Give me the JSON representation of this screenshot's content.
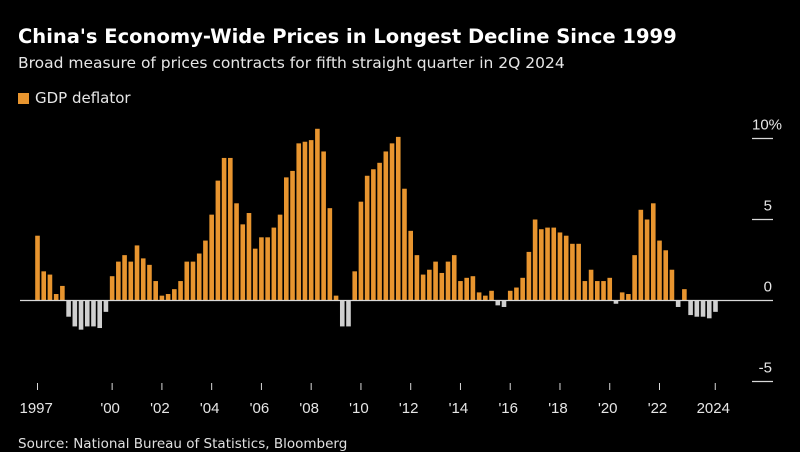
{
  "header": {
    "title": "China's Economy-Wide Prices in Longest Decline Since 1999",
    "subtitle": "Broad measure of prices contracts for fifth straight quarter in 2Q 2024"
  },
  "footer": {
    "source": "Source: National Bureau of Statistics, Bloomberg"
  },
  "colors": {
    "positive": "#e8952f",
    "negative": "#cfcfcf",
    "background": "#000000",
    "axis": "#d9d9d9"
  },
  "chart_data": {
    "type": "bar",
    "title": "China's Economy-Wide Prices in Longest Decline Since 1999",
    "subtitle": "Broad measure of prices contracts for fifth straight quarter in 2Q 2024",
    "legend": {
      "position": "top-left",
      "entries": [
        "GDP deflator"
      ]
    },
    "series": [
      {
        "name": "GDP deflator",
        "start": "1997Q1",
        "end": "2024Q2",
        "frequency": "quarterly",
        "values": [
          4.0,
          1.8,
          1.6,
          0.4,
          0.9,
          -1.0,
          -1.6,
          -1.8,
          -1.6,
          -1.6,
          -1.7,
          -0.7,
          1.5,
          2.4,
          2.8,
          2.4,
          3.4,
          2.6,
          2.2,
          1.2,
          0.3,
          0.4,
          0.7,
          1.2,
          2.4,
          2.4,
          2.9,
          3.7,
          5.3,
          7.4,
          8.8,
          8.8,
          6.0,
          4.7,
          5.4,
          3.2,
          3.9,
          3.9,
          4.5,
          5.3,
          7.6,
          8.0,
          9.7,
          9.8,
          9.9,
          10.6,
          9.2,
          5.7,
          0.3,
          -1.6,
          -1.6,
          1.8,
          6.1,
          7.7,
          8.1,
          8.5,
          9.2,
          9.7,
          10.1,
          6.9,
          4.3,
          2.8,
          1.6,
          1.9,
          2.4,
          1.7,
          2.4,
          2.8,
          1.2,
          1.4,
          1.5,
          0.5,
          0.3,
          0.6,
          -0.3,
          -0.4,
          0.6,
          0.8,
          1.4,
          3.0,
          5.0,
          4.4,
          4.5,
          4.5,
          4.2,
          4.0,
          3.5,
          3.5,
          1.2,
          1.9,
          1.2,
          1.2,
          1.4,
          -0.2,
          0.5,
          0.4,
          2.8,
          5.6,
          5.0,
          6.0,
          3.7,
          3.1,
          1.9,
          -0.4,
          0.7,
          -0.9,
          -1.0,
          -1.0,
          -1.1,
          -0.7
        ]
      }
    ],
    "xticks": [
      {
        "year": 1997,
        "label": "1997"
      },
      {
        "year": 2000,
        "label": "'00"
      },
      {
        "year": 2002,
        "label": "'02"
      },
      {
        "year": 2004,
        "label": "'04"
      },
      {
        "year": 2006,
        "label": "'06"
      },
      {
        "year": 2008,
        "label": "'08"
      },
      {
        "year": 2010,
        "label": "'10"
      },
      {
        "year": 2012,
        "label": "'12"
      },
      {
        "year": 2014,
        "label": "'14"
      },
      {
        "year": 2016,
        "label": "'16"
      },
      {
        "year": 2018,
        "label": "'18"
      },
      {
        "year": 2020,
        "label": "'20"
      },
      {
        "year": 2022,
        "label": "'22"
      },
      {
        "year": 2024,
        "label": "2024"
      }
    ],
    "yticks": [
      {
        "value": 10,
        "label": "10%"
      },
      {
        "value": 5,
        "label": "5"
      },
      {
        "value": 0,
        "label": "0"
      },
      {
        "value": -5,
        "label": "-5"
      }
    ],
    "ylim": [
      -5,
      10
    ],
    "ylabel": "",
    "xlabel": "",
    "axis_side": "right",
    "grid": false
  }
}
